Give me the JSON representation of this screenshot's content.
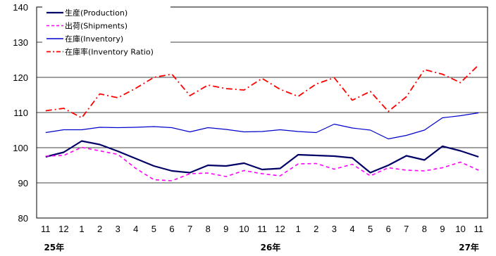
{
  "chart_data": {
    "type": "line",
    "categories": [
      "11",
      "12",
      "1",
      "2",
      "3",
      "4",
      "5",
      "6",
      "7",
      "8",
      "9",
      "10",
      "11",
      "12",
      "1",
      "2",
      "3",
      "4",
      "5",
      "6",
      "7",
      "8",
      "9",
      "10",
      "11"
    ],
    "year_labels": [
      {
        "label": "25年",
        "index": 0
      },
      {
        "label": "26年",
        "index": 12
      },
      {
        "label": "27年",
        "index": 23
      }
    ],
    "ylim": [
      80,
      140
    ],
    "yticks": [
      "80",
      "90",
      "100",
      "110",
      "120",
      "130",
      "140"
    ],
    "grid": true,
    "legend_position": "top-left",
    "series": [
      {
        "name": "生産(Production)",
        "color": "#000066",
        "style": "solid",
        "width": 2.2,
        "values": [
          97.4,
          98.7,
          101.9,
          100.9,
          99.0,
          96.9,
          94.8,
          93.4,
          92.9,
          95.0,
          94.8,
          95.6,
          93.8,
          94.1,
          98.0,
          97.8,
          97.6,
          97.1,
          92.9,
          95.0,
          97.7,
          96.5,
          100.4,
          99.1,
          97.4
        ]
      },
      {
        "name": "出荷(Shipments)",
        "color": "#ff00ff",
        "style": "dashed",
        "width": 1.6,
        "values": [
          97.6,
          97.8,
          100.1,
          99.1,
          98.1,
          94.1,
          90.9,
          90.6,
          92.6,
          92.8,
          91.8,
          93.5,
          92.6,
          92.0,
          95.4,
          95.5,
          93.9,
          95.3,
          92.0,
          94.3,
          93.6,
          93.4,
          94.3,
          95.9,
          93.6
        ]
      },
      {
        "name": "在庫(Inventory)",
        "color": "#0000cc",
        "style": "solid",
        "width": 1.2,
        "values": [
          104.3,
          105.1,
          105.1,
          105.8,
          105.7,
          105.8,
          106.0,
          105.7,
          104.5,
          105.7,
          105.2,
          104.5,
          104.6,
          105.1,
          104.6,
          104.3,
          106.7,
          105.6,
          105.0,
          102.5,
          103.5,
          105.0,
          108.5,
          109.1,
          109.9
        ]
      },
      {
        "name": "在庫率(Inventory Ratio)",
        "color": "#ff0000",
        "style": "dashdot",
        "width": 1.8,
        "values": [
          110.5,
          111.2,
          108.5,
          115.3,
          114.2,
          116.9,
          120.0,
          120.9,
          114.8,
          117.8,
          116.8,
          116.4,
          119.7,
          116.6,
          114.6,
          118.1,
          119.9,
          113.5,
          116.0,
          110.3,
          114.5,
          122.2,
          120.9,
          118.5,
          123.5
        ]
      }
    ]
  }
}
